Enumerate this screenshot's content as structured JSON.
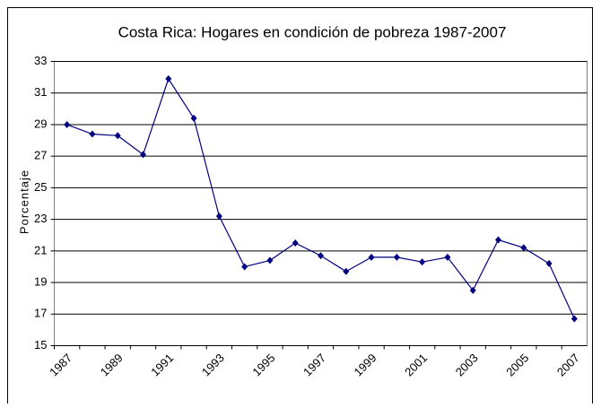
{
  "chart_data": {
    "type": "line",
    "title": "Costa Rica: Hogares en condición de pobreza 1987-2007",
    "y_label": "Porcentaje",
    "categories": [
      "1987",
      null,
      "1989",
      null,
      "1991",
      null,
      "1993",
      null,
      "1995",
      null,
      "1997",
      null,
      "1999",
      null,
      "2001",
      null,
      "2003",
      null,
      "2005",
      null,
      "2007"
    ],
    "series": [
      {
        "name": "Hogares en condición de pobreza",
        "color": "#000080",
        "values": [
          29.0,
          28.4,
          28.3,
          27.1,
          31.9,
          29.4,
          23.2,
          20.0,
          20.4,
          21.5,
          20.7,
          19.7,
          20.6,
          20.6,
          20.3,
          20.6,
          18.5,
          21.7,
          21.2,
          20.2,
          16.7
        ]
      }
    ],
    "ylim": [
      15,
      33
    ],
    "yticks": [
      15,
      17,
      19,
      21,
      23,
      25,
      27,
      29,
      31,
      33
    ],
    "grid": true
  }
}
